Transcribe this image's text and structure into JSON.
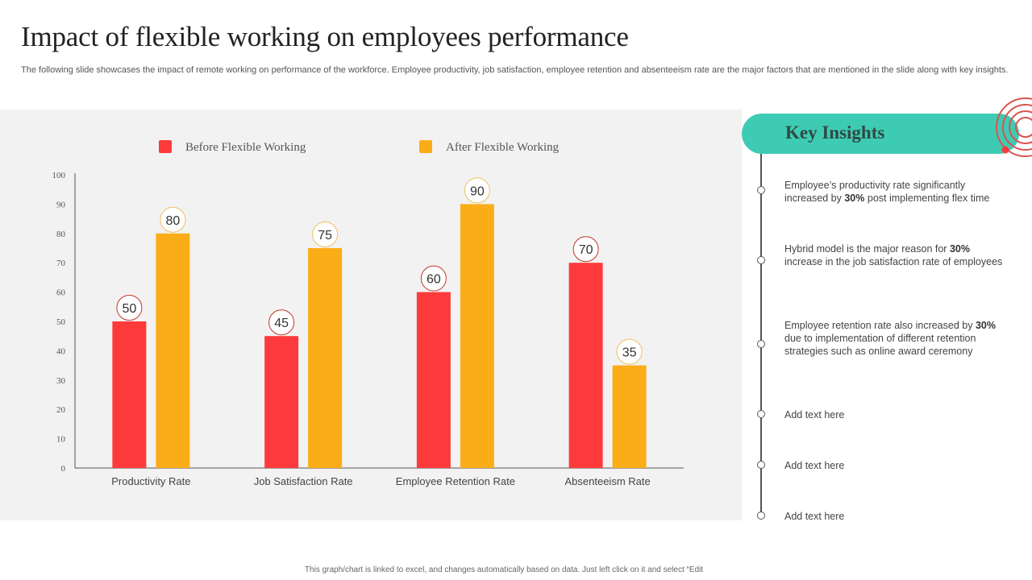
{
  "header": {
    "title": "Impact of flexible working on employees performance",
    "subtitle": "The following slide showcases the impact of remote working on performance of the workforce. Employee productivity, job satisfaction, employee retention and absenteeism rate are the major factors that are mentioned in the slide along with key insights."
  },
  "colors": {
    "before": "#fd3a3b",
    "after": "#fbad18",
    "accent": "#3ecbb4",
    "rings": "#d9534f"
  },
  "chart_data": {
    "type": "bar",
    "title": "",
    "xlabel": "",
    "ylabel": "",
    "categories": [
      "Productivity Rate",
      "Job Satisfaction Rate",
      "Employee Retention Rate",
      "Absenteeism Rate"
    ],
    "series": [
      {
        "name": "Before Flexible Working",
        "values": [
          50,
          45,
          60,
          70
        ]
      },
      {
        "name": "After Flexible Working",
        "values": [
          80,
          75,
          90,
          35
        ]
      }
    ],
    "ylim": [
      0,
      100
    ],
    "yticks": [
      0,
      10,
      20,
      30,
      40,
      50,
      60,
      70,
      80,
      90,
      100
    ],
    "grid": false,
    "legend_position": "top",
    "data_labels": true
  },
  "insights": {
    "title": "Key Insights",
    "items": [
      {
        "pre": "Employee’s productivity rate significantly increased by ",
        "bold": "30%",
        "post": " post implementing flex time"
      },
      {
        "pre": "Hybrid model is the major reason for ",
        "bold": "30%",
        "post": " increase in the job satisfaction rate of employees"
      },
      {
        "pre": "Employee retention rate also increased by ",
        "bold": "30%",
        "post": " due to implementation of different retention strategies such as online award ceremony"
      },
      {
        "pre": "Add text here",
        "bold": "",
        "post": ""
      },
      {
        "pre": "Add text here",
        "bold": "",
        "post": ""
      },
      {
        "pre": "Add text here",
        "bold": "",
        "post": ""
      }
    ]
  },
  "footer": {
    "note": "This graph/chart is linked to excel, and changes automatically based on data. Just left click on it and select “Edit"
  }
}
